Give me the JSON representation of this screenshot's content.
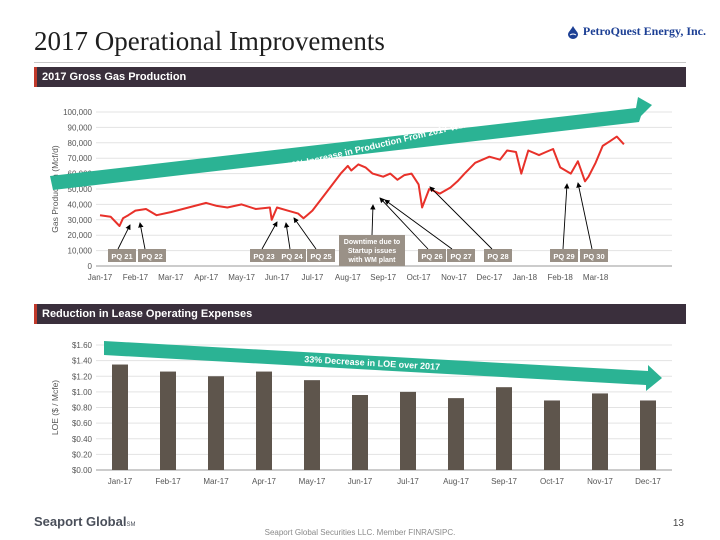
{
  "page": {
    "title": "2017 Operational Improvements",
    "company": "PetroQuest Energy, Inc.",
    "page_number": "13",
    "footer_brand": "Seaport Global",
    "footer_brand_suffix": "SM",
    "footer_note": "Seaport Global Securities LLC. Member FINRA/SIPC.",
    "colors": {
      "bar_header": "#3a2f3c",
      "line": "#e8312a",
      "arrow": "#2bb394",
      "bars": "#5e554c",
      "label_box": "#9a9187"
    }
  },
  "chart_data": [
    {
      "type": "line",
      "section_title": "2017 Gross Gas Production",
      "ylabel": "Gas Production (Mcf/d)",
      "ylim": [
        0,
        100000
      ],
      "y_ticks": [
        "0",
        "10,000",
        "20,000",
        "30,000",
        "40,000",
        "50,000",
        "60,000",
        "70,000",
        "80,000",
        "90,000",
        "100,000"
      ],
      "categories": [
        "Jan-17",
        "Feb-17",
        "Mar-17",
        "Apr-17",
        "May-17",
        "Jun-17",
        "Jul-17",
        "Aug-17",
        "Sep-17",
        "Oct-17",
        "Nov-17",
        "Dec-17",
        "Jan-18",
        "Feb-18",
        "Mar-18"
      ],
      "series": [
        {
          "name": "Gross Gas Production",
          "x": [
            0,
            0.3,
            0.55,
            0.65,
            0.8,
            1.0,
            1.3,
            1.6,
            2.0,
            2.5,
            3.0,
            3.3,
            3.6,
            4.0,
            4.4,
            4.8,
            4.85,
            5.0,
            5.3,
            5.6,
            5.75,
            5.85,
            6.0,
            6.4,
            6.8,
            7.0,
            7.1,
            7.3,
            7.5,
            7.7,
            8.0,
            8.2,
            8.4,
            8.6,
            8.8,
            9.0,
            9.1,
            9.3,
            9.6,
            9.9,
            10.1,
            10.3,
            10.6,
            11.0,
            11.3,
            11.5,
            11.75,
            11.9,
            12.1,
            12.4,
            12.6,
            12.8,
            13.0,
            13.3,
            13.5,
            13.7,
            13.8,
            14.0,
            14.2,
            14.4,
            14.6,
            14.8
          ],
          "y": [
            33000,
            32000,
            26000,
            31000,
            33000,
            36000,
            37000,
            33000,
            35000,
            38000,
            41000,
            39000,
            38000,
            40000,
            37000,
            38000,
            30000,
            38000,
            36000,
            34000,
            31000,
            33000,
            36000,
            48000,
            60000,
            65000,
            62000,
            66000,
            64000,
            60000,
            58000,
            60000,
            56000,
            59000,
            60000,
            53000,
            38000,
            50000,
            47000,
            51000,
            55000,
            60000,
            67000,
            71000,
            69000,
            75000,
            74000,
            60000,
            75000,
            72000,
            74000,
            76000,
            64000,
            60000,
            68000,
            55000,
            58000,
            67000,
            78000,
            81000,
            84000,
            79000
          ]
        }
      ],
      "trend_arrow": "150% Increase in Production From 2017 Wells",
      "label_boxes": [
        "PQ 21",
        "PQ 22",
        "PQ 23",
        "PQ 24",
        "PQ 25",
        "Downtime due to",
        "Startup issues",
        "with WM plant",
        "PQ 26",
        "PQ 27",
        "PQ 28",
        "PQ 29",
        "PQ 30"
      ]
    },
    {
      "type": "bar",
      "section_title": "Reduction in Lease Operating Expenses",
      "ylabel": "LOE ($ / Mcfe)",
      "ylim": [
        0,
        1.6
      ],
      "y_ticks": [
        "$0.00",
        "$0.20",
        "$0.40",
        "$0.60",
        "$0.80",
        "$1.00",
        "$1.20",
        "$1.40",
        "$1.60"
      ],
      "categories": [
        "Jan-17",
        "Feb-17",
        "Mar-17",
        "Apr-17",
        "May-17",
        "Jun-17",
        "Jul-17",
        "Aug-17",
        "Sep-17",
        "Oct-17",
        "Nov-17",
        "Dec-17"
      ],
      "values": [
        1.35,
        1.26,
        1.2,
        1.26,
        1.15,
        0.96,
        1.0,
        0.92,
        1.06,
        0.89,
        0.98,
        0.89
      ],
      "trend_arrow": "33% Decrease in LOE over 2017"
    }
  ]
}
